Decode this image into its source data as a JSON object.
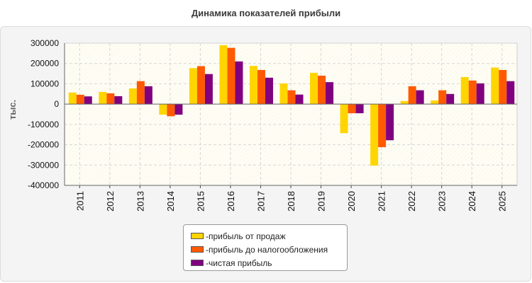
{
  "chart_data": {
    "type": "bar",
    "title": "Динамика показателей прибыли",
    "ylabel": "тыс.",
    "xlabel": "",
    "ylim": [
      -400000,
      300000
    ],
    "yticks": [
      300000,
      200000,
      100000,
      0,
      -100000,
      -200000,
      -300000,
      -400000
    ],
    "grid": true,
    "legend_position": "bottom",
    "categories": [
      "2011",
      "2012",
      "2013",
      "2014",
      "2015",
      "2016",
      "2017",
      "2018",
      "2019",
      "2020",
      "2021",
      "2022",
      "2023",
      "2024",
      "2025"
    ],
    "series": [
      {
        "name": "прибыль от продаж",
        "color": "#FFD500",
        "values": [
          57000,
          60000,
          77000,
          -52000,
          177000,
          290000,
          188000,
          102000,
          154000,
          -143000,
          -303000,
          15000,
          18000,
          133000,
          180000
        ]
      },
      {
        "name": "прибыль до налогообложения",
        "color": "#FF5A00",
        "values": [
          46000,
          53000,
          113000,
          -60000,
          187000,
          277000,
          168000,
          68000,
          140000,
          -45000,
          -212000,
          88000,
          68000,
          116000,
          168000
        ]
      },
      {
        "name": "чистая прибыль",
        "color": "#800080",
        "values": [
          38000,
          39000,
          88000,
          -52000,
          148000,
          210000,
          130000,
          47000,
          108000,
          -45000,
          -178000,
          68000,
          50000,
          102000,
          113000
        ]
      }
    ]
  },
  "legend_prefix": "- "
}
